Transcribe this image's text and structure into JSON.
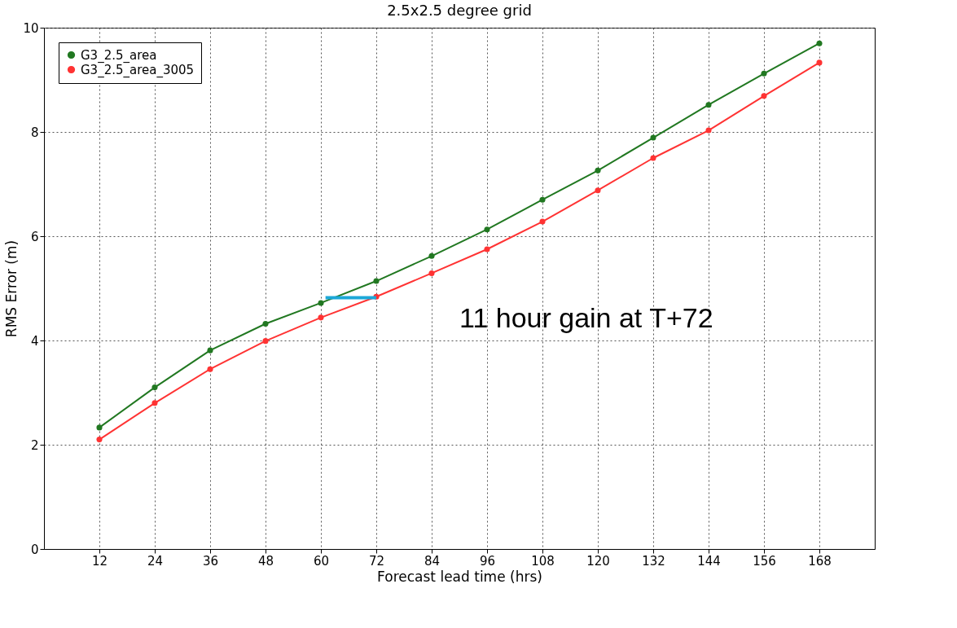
{
  "chart_data": {
    "type": "line",
    "title": "2.5x2.5 degree grid",
    "xlabel": "Forecast lead time (hrs)",
    "ylabel": "RMS Error (m)",
    "xlim": [
      0,
      180
    ],
    "xticks": [
      12,
      24,
      36,
      48,
      60,
      72,
      84,
      96,
      108,
      120,
      132,
      144,
      156,
      168
    ],
    "ylim": [
      0,
      10
    ],
    "yticks": [
      0,
      2,
      4,
      6,
      8,
      10
    ],
    "x": [
      12,
      24,
      36,
      48,
      60,
      72,
      84,
      96,
      108,
      120,
      132,
      144,
      156,
      168
    ],
    "series": [
      {
        "name": "G3_2.5_area",
        "color": "#217821",
        "values": [
          2.33,
          3.1,
          3.81,
          4.32,
          4.72,
          5.14,
          5.62,
          6.13,
          6.7,
          7.26,
          7.89,
          8.52,
          9.12,
          9.7
        ]
      },
      {
        "name": "G3_2.5_area_3005",
        "color": "#ff3333",
        "values": [
          2.1,
          2.8,
          3.45,
          3.99,
          4.44,
          4.84,
          5.29,
          5.75,
          6.28,
          6.88,
          7.5,
          8.03,
          8.69,
          9.33
        ]
      },
      {
        "color": "#1ca8d8",
        "x": [
          61,
          72
        ],
        "values": [
          4.82,
          4.82
        ],
        "marker": "none"
      }
    ],
    "annotations": [
      "11 hour gain at T+72"
    ],
    "grid": true,
    "legend": "top left",
    "marker": "circle",
    "line_style": "solid"
  }
}
